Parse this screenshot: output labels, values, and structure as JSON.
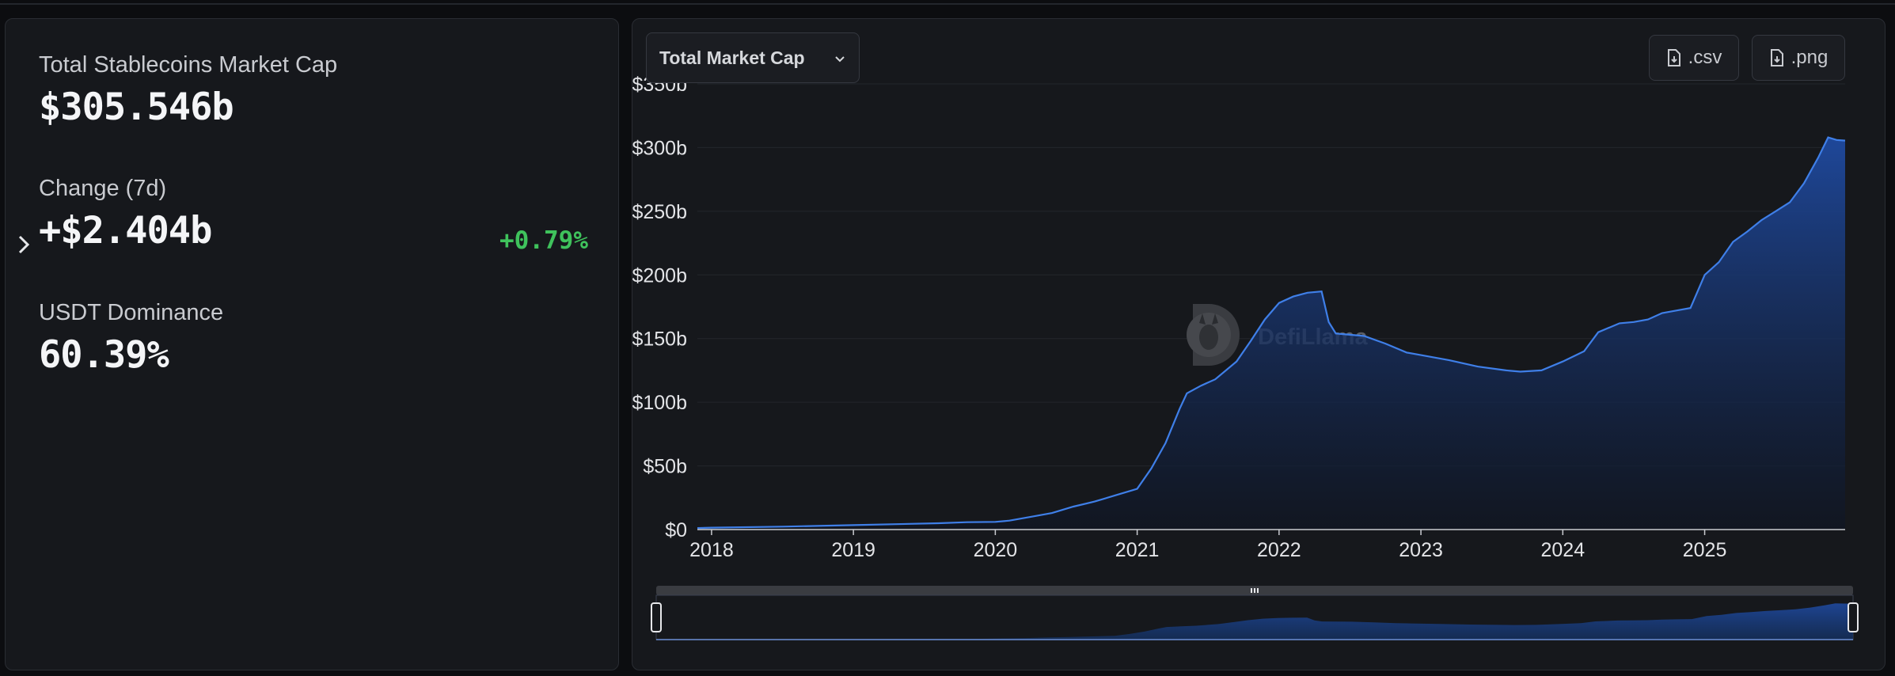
{
  "stats": {
    "market_cap_label": "Total Stablecoins Market Cap",
    "market_cap_value": "$305.546b",
    "change_label": "Change (7d)",
    "change_value": "+$2.404b",
    "change_percent": "+0.79%",
    "dominance_label": "USDT Dominance",
    "dominance_value": "60.39%"
  },
  "toolbar": {
    "metric_selected": "Total Market Cap",
    "csv_label": ".csv",
    "png_label": ".png"
  },
  "watermark": "DefiLlama",
  "colors": {
    "line": "#3f7fe8",
    "area_top": "#1f4aa0",
    "positive": "#3fc25c",
    "panel_bg": "#16181c"
  },
  "chart_data": {
    "type": "area",
    "title": "",
    "xlabel": "",
    "ylabel": "",
    "x_ticks": [
      "2018",
      "2019",
      "2020",
      "2021",
      "2022",
      "2023",
      "2024",
      "2025"
    ],
    "y_ticks": [
      "$0",
      "$50b",
      "$100b",
      "$150b",
      "$200b",
      "$250b",
      "$300b",
      "$350b"
    ],
    "xlim": [
      2017.9,
      2025.99
    ],
    "ylim": [
      0,
      350
    ],
    "unit": "billions USD",
    "series": [
      {
        "x": [
          2017.9,
          2018.0,
          2018.5,
          2019.0,
          2019.3,
          2019.6,
          2019.8,
          2020.0,
          2020.1,
          2020.25,
          2020.4,
          2020.55,
          2020.7,
          2020.85,
          2021.0,
          2021.1,
          2021.2,
          2021.3,
          2021.35,
          2021.45,
          2021.55,
          2021.7,
          2021.8,
          2021.9,
          2022.0,
          2022.1,
          2022.2,
          2022.3,
          2022.35,
          2022.4,
          2022.5,
          2022.6,
          2022.75,
          2022.9,
          2023.0,
          2023.2,
          2023.4,
          2023.6,
          2023.7,
          2023.85,
          2024.0,
          2024.15,
          2024.25,
          2024.4,
          2024.5,
          2024.6,
          2024.7,
          2024.8,
          2024.9,
          2025.0,
          2025.1,
          2025.2,
          2025.3,
          2025.4,
          2025.5,
          2025.6,
          2025.7,
          2025.8,
          2025.87,
          2025.93,
          2025.99
        ],
        "y": [
          1.2,
          1.5,
          2.3,
          3.5,
          4.2,
          5.0,
          5.8,
          6.0,
          7.0,
          10.0,
          13.0,
          18.0,
          22.0,
          27.0,
          32.0,
          48.0,
          68.0,
          95.0,
          107.0,
          113.0,
          118.0,
          132.0,
          148.0,
          165.0,
          178.0,
          183.0,
          186.0,
          187.0,
          163.0,
          154.0,
          153.0,
          152.0,
          146.0,
          139.0,
          137.0,
          133.0,
          128.0,
          125.0,
          124.0,
          125.0,
          132.0,
          140.0,
          155.0,
          162.0,
          163.0,
          165.0,
          170.0,
          172.0,
          174.0,
          200.0,
          210.0,
          226.0,
          234.0,
          243.0,
          250.0,
          257.0,
          272.0,
          292.0,
          308.0,
          306.0,
          305.5
        ]
      }
    ],
    "grid": "horizontal",
    "legend": "none"
  }
}
